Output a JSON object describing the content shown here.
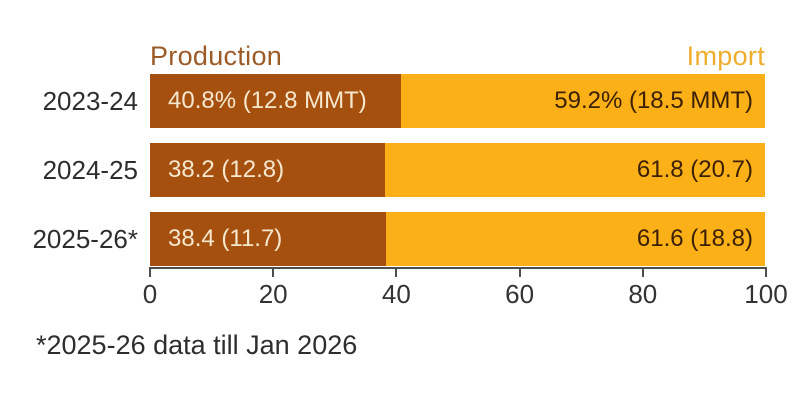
{
  "colors": {
    "production_bar": "#A6500F",
    "import_bar": "#FBB017",
    "production_title": "#9C5A26",
    "import_title": "#EFAD2D",
    "text_on_production": "#F6E8CE",
    "text_on_import": "#3B2005",
    "axis": "#4D4D4D",
    "ink": "#2E2E2E"
  },
  "chart_data": {
    "type": "bar",
    "orientation": "horizontal-stacked",
    "title": "",
    "categories": [
      "2023-24",
      "2024-25",
      "2025-26*"
    ],
    "series": [
      {
        "name": "Production",
        "values": [
          40.8,
          38.2,
          38.4
        ],
        "mmt": [
          12.8,
          12.8,
          11.7
        ],
        "labels": [
          "40.8% (12.8 MMT)",
          "38.2 (12.8)",
          "38.4 (11.7)"
        ]
      },
      {
        "name": "Import",
        "values": [
          59.2,
          61.8,
          61.6
        ],
        "mmt": [
          18.5,
          20.7,
          18.8
        ],
        "labels": [
          "59.2% (18.5 MMT)",
          "61.8 (20.7)",
          "61.6 (18.8)"
        ]
      }
    ],
    "unit": "MMT",
    "xlim": [
      0,
      100
    ],
    "x_ticks": [
      "0",
      "20",
      "40",
      "60",
      "80",
      "100"
    ],
    "x_tick_values": [
      0,
      20,
      40,
      60,
      80,
      100
    ],
    "legend_position": "top",
    "grid": false
  },
  "footnote": "*2025-26 data till Jan 2026"
}
